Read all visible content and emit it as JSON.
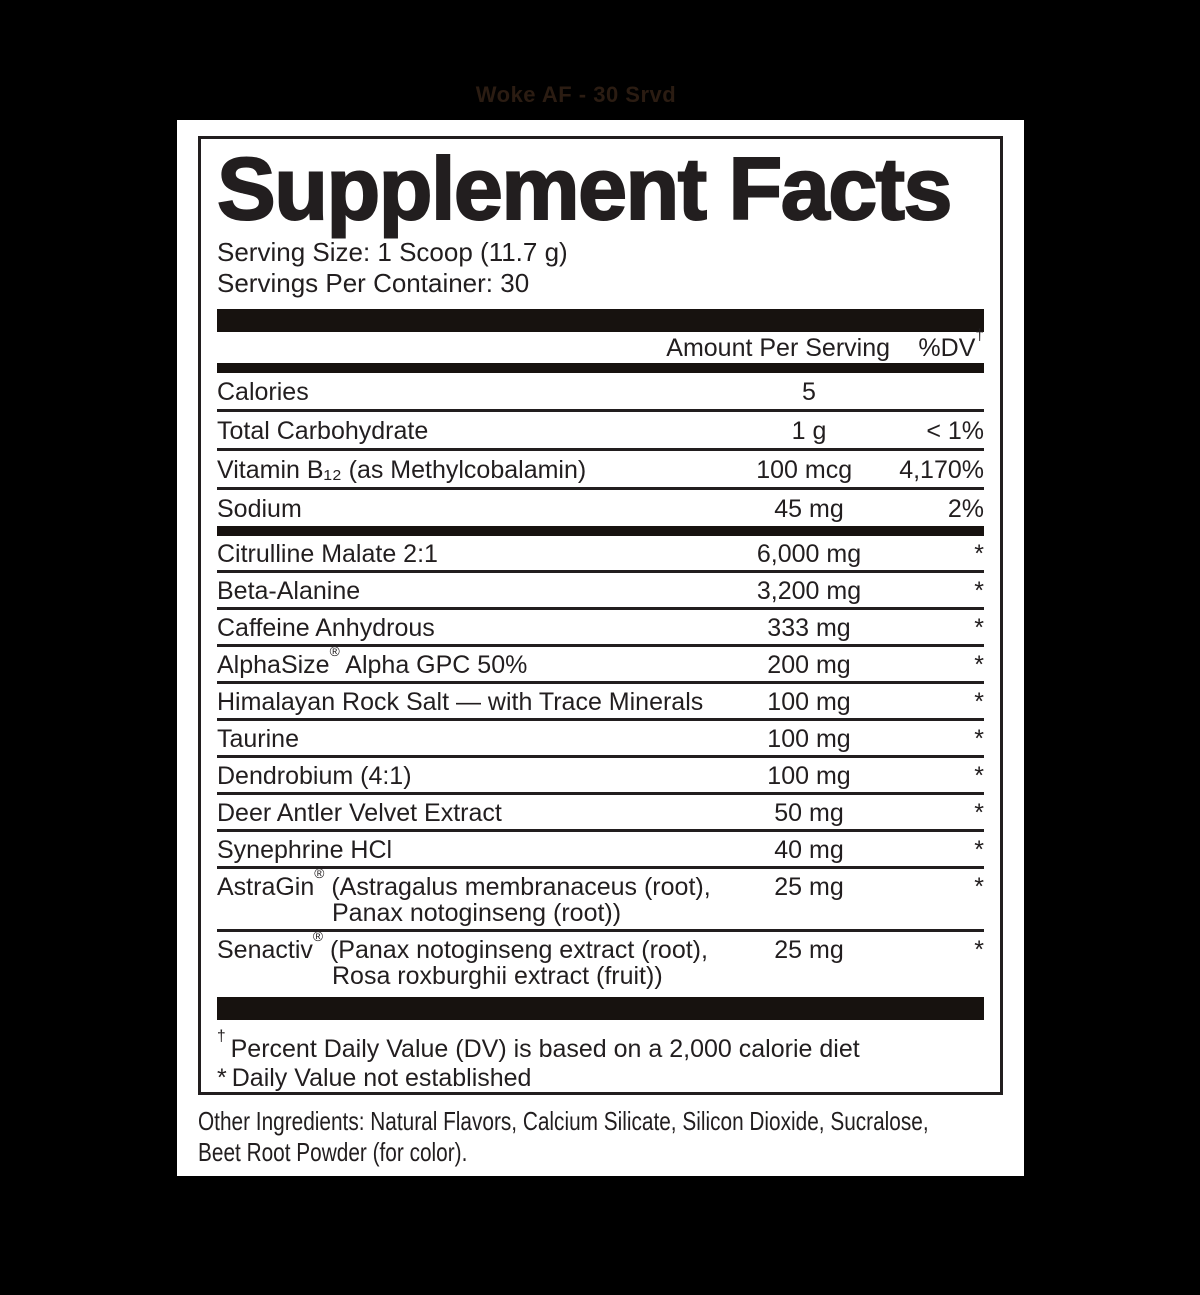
{
  "page": {
    "caption": "Woke AF - 30 Srvd"
  },
  "panel": {
    "title": "Supplement Facts",
    "serving_size": "Serving Size: 1 Scoop (11.7 g)",
    "servings_per_container": "Servings Per Container: 30",
    "header": {
      "amount": "Amount Per Serving",
      "dv": "%DV",
      "dagger": "†"
    },
    "nutrients": [
      {
        "name": "Calories",
        "amount": "5",
        "dv": ""
      },
      {
        "name": "Total Carbohydrate",
        "amount": "1 g",
        "dv": "< 1%"
      },
      {
        "name": "Vitamin B₁₂ (as Methylcobalamin)",
        "amount": "100 mcg",
        "dv": "4,170%"
      },
      {
        "name": "Sodium",
        "amount": "45 mg",
        "dv": "2%"
      }
    ],
    "ingredients": [
      {
        "name": "Citrulline Malate 2:1",
        "amount": "6,000 mg",
        "dv": "*"
      },
      {
        "name": "Beta-Alanine",
        "amount": "3,200 mg",
        "dv": "*"
      },
      {
        "name": "Caffeine Anhydrous",
        "amount": "333 mg",
        "dv": "*"
      },
      {
        "name": "AlphaSize® Alpha GPC 50%",
        "amount": "200 mg",
        "dv": "*"
      },
      {
        "name": "Himalayan Rock Salt — with Trace Minerals",
        "amount": "100 mg",
        "dv": "*"
      },
      {
        "name": "Taurine",
        "amount": "100 mg",
        "dv": "*"
      },
      {
        "name": "Dendrobium (4:1)",
        "amount": "100 mg",
        "dv": "*"
      },
      {
        "name": "Deer Antler Velvet Extract",
        "amount": "50 mg",
        "dv": "*"
      },
      {
        "name": "Synephrine HCl",
        "amount": "40 mg",
        "dv": "*"
      },
      {
        "name": "AstraGin® (Astragalus membranaceus (root),",
        "name2": "Panax notoginseng (root))",
        "amount": "25 mg",
        "dv": "*"
      },
      {
        "name": "Senactiv® (Panax notoginseng extract (root),",
        "name2": "Rosa roxburghii extract (fruit))",
        "amount": "25 mg",
        "dv": "*"
      }
    ],
    "footnotes": [
      {
        "marker": "†",
        "text": "Percent Daily Value (DV) is based on a 2,000 calorie diet"
      },
      {
        "marker": "*",
        "text": "Daily Value not established"
      }
    ]
  },
  "other_ingredients": {
    "line1": "Other Ingredients: Natural Flavors, Calcium Silicate, Silicon Dioxide, Sucralose,",
    "line2": "Beet Root Powder (for color)."
  },
  "colors": {
    "page_bg": "#000000",
    "card_bg": "#ffffff",
    "ink": "#221e1f",
    "bar": "#17120f",
    "caption_ink": "#2b1c12"
  }
}
